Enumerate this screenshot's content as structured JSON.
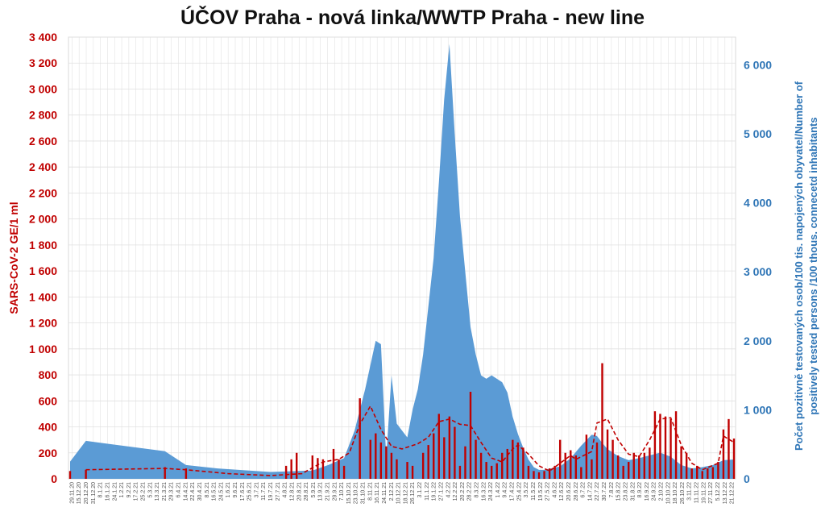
{
  "chart_data": {
    "type": "bar",
    "title": "ÚČOV Praha - nová linka/WWTP Praha - new line",
    "ylabel": "SARS-CoV-2 GE/1 ml",
    "y2label_line1": "Počet pozitivně testovaných osob/100 tis. napojených obyvatel/Number of",
    "y2label_line2": "positively tested persons /100 thous. connecetd inhabitants",
    "ylim": [
      0,
      3400
    ],
    "y2lim": [
      0,
      6400
    ],
    "y_ticks": [
      "0",
      "200",
      "400",
      "600",
      "800",
      "1 000",
      "1 200",
      "1 400",
      "1 600",
      "1 800",
      "2 000",
      "2 200",
      "2 400",
      "2 600",
      "2 800",
      "3 000",
      "3 200",
      "3 400"
    ],
    "y2_ticks": [
      "0",
      "1 000",
      "2 000",
      "3 000",
      "4 000",
      "5 000",
      "6 000"
    ],
    "x_ticks": [
      "29.11.20",
      "15.12.20",
      "20.12.20",
      "31.12.20",
      "8.1.21",
      "16.1.21",
      "24.1.21",
      "1.2.21",
      "9.2.21",
      "17.2.21",
      "25.2.21",
      "5.3.21",
      "13.3.21",
      "21.3.21",
      "29.3.21",
      "6.4.21",
      "14.4.21",
      "22.4.21",
      "30.4.21",
      "8.5.21",
      "16.5.21",
      "24.5.21",
      "1.6.21",
      "9.6.21",
      "17.6.21",
      "25.6.21",
      "3.7.21",
      "11.7.21",
      "19.7.21",
      "27.7.21",
      "4.8.21",
      "12.8.21",
      "20.8.21",
      "28.8.21",
      "5.9.21",
      "13.9.21",
      "21.9.21",
      "29.9.21",
      "7.10.21",
      "15.10.21",
      "23.10.21",
      "31.10.21",
      "8.11.21",
      "16.11.21",
      "24.11.21",
      "2.12.21",
      "10.12.21",
      "18.12.21",
      "26.12.21",
      "3.1.22",
      "11.1.22",
      "19.1.22",
      "27.1.22",
      "4.2.22",
      "12.2.22",
      "20.2.22",
      "28.2.22",
      "8.3.22",
      "16.3.22",
      "24.3.22",
      "1.4.22",
      "9.4.22",
      "17.4.22",
      "25.4.22",
      "3.5.22",
      "11.5.22",
      "19.5.22",
      "27.5.22",
      "4.6.22",
      "12.6.22",
      "20.6.22",
      "28.6.22",
      "6.7.22",
      "14.7.22",
      "22.7.22",
      "30.7.22",
      "7.8.22",
      "15.8.22",
      "23.8.22",
      "31.8.22",
      "8.9.22",
      "16.9.22",
      "24.9.22",
      "2.10.22",
      "10.10.22",
      "18.10.22",
      "26.10.22",
      "3.11.22",
      "11.11.22",
      "19.11.22",
      "27.11.22",
      "5.12.22",
      "13.12.22",
      "21.12.22"
    ],
    "series": [
      {
        "name": "SARS-CoV-2 GE/1 ml",
        "type": "bar",
        "color": "#c00000",
        "points": [
          [
            0,
            60
          ],
          [
            3,
            70
          ],
          [
            18,
            90
          ],
          [
            22,
            80
          ],
          [
            41,
            100
          ],
          [
            42,
            150
          ],
          [
            43,
            200
          ],
          [
            46,
            180
          ],
          [
            47,
            160
          ],
          [
            48,
            150
          ],
          [
            50,
            230
          ],
          [
            51,
            150
          ],
          [
            52,
            100
          ],
          [
            55,
            620
          ],
          [
            57,
            300
          ],
          [
            58,
            350
          ],
          [
            59,
            280
          ],
          [
            60,
            250
          ],
          [
            61,
            200
          ],
          [
            62,
            150
          ],
          [
            64,
            130
          ],
          [
            65,
            100
          ],
          [
            67,
            200
          ],
          [
            68,
            260
          ],
          [
            69,
            350
          ],
          [
            70,
            500
          ],
          [
            71,
            320
          ],
          [
            72,
            480
          ],
          [
            73,
            400
          ],
          [
            74,
            100
          ],
          [
            75,
            250
          ],
          [
            76,
            670
          ],
          [
            77,
            300
          ],
          [
            78,
            200
          ],
          [
            79,
            130
          ],
          [
            80,
            100
          ],
          [
            81,
            120
          ],
          [
            82,
            200
          ],
          [
            83,
            230
          ],
          [
            84,
            300
          ],
          [
            85,
            280
          ],
          [
            86,
            240
          ],
          [
            87,
            100
          ],
          [
            88,
            60
          ],
          [
            89,
            50
          ],
          [
            90,
            60
          ],
          [
            91,
            80
          ],
          [
            92,
            100
          ],
          [
            93,
            300
          ],
          [
            94,
            200
          ],
          [
            95,
            220
          ],
          [
            96,
            180
          ],
          [
            97,
            90
          ],
          [
            98,
            340
          ],
          [
            99,
            150
          ],
          [
            100,
            280
          ],
          [
            101,
            890
          ],
          [
            102,
            380
          ],
          [
            103,
            300
          ],
          [
            104,
            180
          ],
          [
            105,
            100
          ],
          [
            106,
            130
          ],
          [
            107,
            200
          ],
          [
            108,
            180
          ],
          [
            109,
            200
          ],
          [
            110,
            240
          ],
          [
            111,
            520
          ],
          [
            112,
            500
          ],
          [
            113,
            480
          ],
          [
            114,
            460
          ],
          [
            115,
            520
          ],
          [
            116,
            250
          ],
          [
            117,
            200
          ],
          [
            118,
            80
          ],
          [
            119,
            100
          ],
          [
            120,
            60
          ],
          [
            121,
            80
          ],
          [
            122,
            90
          ],
          [
            123,
            130
          ],
          [
            124,
            380
          ],
          [
            125,
            460
          ],
          [
            126,
            310
          ]
        ]
      },
      {
        "name": "trend",
        "type": "line",
        "color": "#c00000",
        "points": [
          [
            3,
            70
          ],
          [
            18,
            80
          ],
          [
            22,
            70
          ],
          [
            30,
            40
          ],
          [
            38,
            25
          ],
          [
            44,
            40
          ],
          [
            48,
            130
          ],
          [
            51,
            150
          ],
          [
            53,
            200
          ],
          [
            55,
            420
          ],
          [
            57,
            560
          ],
          [
            59,
            380
          ],
          [
            61,
            250
          ],
          [
            63,
            230
          ],
          [
            66,
            270
          ],
          [
            68,
            320
          ],
          [
            70,
            440
          ],
          [
            72,
            460
          ],
          [
            74,
            420
          ],
          [
            76,
            410
          ],
          [
            78,
            280
          ],
          [
            80,
            160
          ],
          [
            82,
            130
          ],
          [
            84,
            230
          ],
          [
            85,
            260
          ],
          [
            87,
            190
          ],
          [
            89,
            100
          ],
          [
            91,
            60
          ],
          [
            93,
            120
          ],
          [
            95,
            180
          ],
          [
            96,
            150
          ],
          [
            99,
            210
          ],
          [
            100,
            430
          ],
          [
            102,
            460
          ],
          [
            104,
            300
          ],
          [
            106,
            190
          ],
          [
            108,
            170
          ],
          [
            110,
            300
          ],
          [
            112,
            460
          ],
          [
            114,
            470
          ],
          [
            116,
            260
          ],
          [
            118,
            120
          ],
          [
            120,
            70
          ],
          [
            123,
            120
          ],
          [
            124,
            330
          ],
          [
            126,
            280
          ]
        ]
      },
      {
        "name": "positively tested persons",
        "type": "area",
        "color": "#5b9bd5",
        "points": [
          [
            0,
            250
          ],
          [
            3,
            550
          ],
          [
            18,
            400
          ],
          [
            22,
            200
          ],
          [
            28,
            150
          ],
          [
            38,
            100
          ],
          [
            46,
            120
          ],
          [
            49,
            200
          ],
          [
            52,
            300
          ],
          [
            54,
            700
          ],
          [
            56,
            1300
          ],
          [
            57,
            1650
          ],
          [
            58,
            2000
          ],
          [
            59,
            1950
          ],
          [
            60,
            300
          ],
          [
            61,
            1500
          ],
          [
            62,
            800
          ],
          [
            63,
            700
          ],
          [
            64,
            600
          ],
          [
            65,
            1000
          ],
          [
            66,
            1300
          ],
          [
            67,
            1800
          ],
          [
            68,
            2500
          ],
          [
            69,
            3200
          ],
          [
            70,
            4300
          ],
          [
            71,
            5500
          ],
          [
            72,
            6300
          ],
          [
            73,
            5000
          ],
          [
            74,
            3800
          ],
          [
            75,
            3000
          ],
          [
            76,
            2200
          ],
          [
            77,
            1800
          ],
          [
            78,
            1500
          ],
          [
            79,
            1450
          ],
          [
            80,
            1500
          ],
          [
            81,
            1450
          ],
          [
            82,
            1400
          ],
          [
            83,
            1250
          ],
          [
            84,
            900
          ],
          [
            85,
            650
          ],
          [
            86,
            450
          ],
          [
            87,
            280
          ],
          [
            88,
            170
          ],
          [
            89,
            130
          ],
          [
            90,
            130
          ],
          [
            93,
            180
          ],
          [
            95,
            300
          ],
          [
            97,
            480
          ],
          [
            99,
            640
          ],
          [
            100,
            620
          ],
          [
            101,
            520
          ],
          [
            102,
            430
          ],
          [
            104,
            330
          ],
          [
            106,
            270
          ],
          [
            108,
            300
          ],
          [
            110,
            340
          ],
          [
            112,
            380
          ],
          [
            114,
            320
          ],
          [
            116,
            200
          ],
          [
            118,
            150
          ],
          [
            120,
            170
          ],
          [
            122,
            200
          ],
          [
            124,
            270
          ],
          [
            126,
            280
          ]
        ]
      }
    ],
    "grid": true,
    "legend": "none"
  }
}
